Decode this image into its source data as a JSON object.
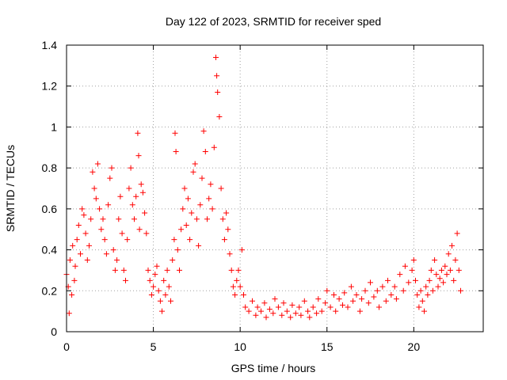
{
  "chart_data": {
    "type": "scatter",
    "title": "Day 122 of 2023, SRMTID for receiver sped",
    "xlabel": "GPS time / hours",
    "ylabel": "SRMTID / TECUs",
    "xlim": [
      0,
      24
    ],
    "ylim": [
      0,
      1.4
    ],
    "x_ticks": [
      0,
      5,
      10,
      15,
      20
    ],
    "y_ticks": [
      0,
      0.2,
      0.4,
      0.6,
      0.8,
      1,
      1.2,
      1.4
    ],
    "x_tick_labels": [
      "0",
      "5",
      "10",
      "15",
      "20"
    ],
    "y_tick_labels": [
      "0",
      "0.2",
      "0.4",
      "0.6",
      "0.8",
      "1",
      "1.2",
      "1.4"
    ],
    "grid": true,
    "marker": "+",
    "series": [
      {
        "name": "SRMTID",
        "color": "#ff0000",
        "points": [
          [
            0.0,
            0.28
          ],
          [
            0.1,
            0.22
          ],
          [
            0.15,
            0.09
          ],
          [
            0.2,
            0.35
          ],
          [
            0.3,
            0.18
          ],
          [
            0.35,
            0.42
          ],
          [
            0.45,
            0.25
          ],
          [
            0.5,
            0.32
          ],
          [
            0.6,
            0.45
          ],
          [
            0.7,
            0.52
          ],
          [
            0.8,
            0.38
          ],
          [
            0.9,
            0.6
          ],
          [
            1.0,
            0.57
          ],
          [
            1.1,
            0.48
          ],
          [
            1.2,
            0.35
          ],
          [
            1.3,
            0.42
          ],
          [
            1.4,
            0.55
          ],
          [
            1.5,
            0.78
          ],
          [
            1.6,
            0.7
          ],
          [
            1.7,
            0.65
          ],
          [
            1.8,
            0.82
          ],
          [
            1.9,
            0.6
          ],
          [
            2.0,
            0.5
          ],
          [
            2.1,
            0.55
          ],
          [
            2.2,
            0.45
          ],
          [
            2.3,
            0.38
          ],
          [
            2.4,
            0.62
          ],
          [
            2.5,
            0.75
          ],
          [
            2.6,
            0.8
          ],
          [
            2.7,
            0.4
          ],
          [
            2.8,
            0.3
          ],
          [
            2.9,
            0.35
          ],
          [
            3.0,
            0.55
          ],
          [
            3.1,
            0.66
          ],
          [
            3.2,
            0.48
          ],
          [
            3.3,
            0.3
          ],
          [
            3.4,
            0.25
          ],
          [
            3.5,
            0.45
          ],
          [
            3.6,
            0.7
          ],
          [
            3.7,
            0.8
          ],
          [
            3.8,
            0.62
          ],
          [
            3.9,
            0.55
          ],
          [
            4.0,
            0.66
          ],
          [
            4.1,
            0.97
          ],
          [
            4.15,
            0.86
          ],
          [
            4.2,
            0.5
          ],
          [
            4.3,
            0.72
          ],
          [
            4.4,
            0.68
          ],
          [
            4.5,
            0.58
          ],
          [
            4.6,
            0.48
          ],
          [
            4.7,
            0.3
          ],
          [
            4.8,
            0.25
          ],
          [
            4.9,
            0.18
          ],
          [
            5.0,
            0.22
          ],
          [
            5.1,
            0.28
          ],
          [
            5.2,
            0.32
          ],
          [
            5.3,
            0.2
          ],
          [
            5.4,
            0.15
          ],
          [
            5.5,
            0.1
          ],
          [
            5.6,
            0.25
          ],
          [
            5.7,
            0.18
          ],
          [
            5.8,
            0.3
          ],
          [
            5.9,
            0.22
          ],
          [
            6.0,
            0.15
          ],
          [
            6.1,
            0.35
          ],
          [
            6.2,
            0.45
          ],
          [
            6.25,
            0.97
          ],
          [
            6.3,
            0.88
          ],
          [
            6.4,
            0.4
          ],
          [
            6.5,
            0.3
          ],
          [
            6.6,
            0.5
          ],
          [
            6.7,
            0.6
          ],
          [
            6.8,
            0.7
          ],
          [
            6.9,
            0.52
          ],
          [
            7.0,
            0.65
          ],
          [
            7.1,
            0.45
          ],
          [
            7.2,
            0.58
          ],
          [
            7.3,
            0.78
          ],
          [
            7.4,
            0.82
          ],
          [
            7.5,
            0.55
          ],
          [
            7.6,
            0.42
          ],
          [
            7.7,
            0.62
          ],
          [
            7.8,
            0.75
          ],
          [
            7.9,
            0.98
          ],
          [
            8.0,
            0.88
          ],
          [
            8.1,
            0.55
          ],
          [
            8.2,
            0.65
          ],
          [
            8.3,
            0.72
          ],
          [
            8.4,
            0.6
          ],
          [
            8.5,
            0.9
          ],
          [
            8.6,
            1.34
          ],
          [
            8.65,
            1.25
          ],
          [
            8.7,
            1.17
          ],
          [
            8.8,
            1.05
          ],
          [
            8.9,
            0.7
          ],
          [
            9.0,
            0.55
          ],
          [
            9.1,
            0.45
          ],
          [
            9.2,
            0.58
          ],
          [
            9.3,
            0.5
          ],
          [
            9.4,
            0.38
          ],
          [
            9.5,
            0.3
          ],
          [
            9.6,
            0.22
          ],
          [
            9.7,
            0.18
          ],
          [
            9.8,
            0.25
          ],
          [
            9.9,
            0.3
          ],
          [
            10.0,
            0.22
          ],
          [
            10.1,
            0.4
          ],
          [
            10.2,
            0.18
          ],
          [
            10.3,
            0.12
          ],
          [
            10.5,
            0.1
          ],
          [
            10.7,
            0.15
          ],
          [
            10.9,
            0.08
          ],
          [
            11.0,
            0.12
          ],
          [
            11.2,
            0.1
          ],
          [
            11.4,
            0.14
          ],
          [
            11.5,
            0.07
          ],
          [
            11.7,
            0.11
          ],
          [
            11.9,
            0.09
          ],
          [
            12.0,
            0.16
          ],
          [
            12.2,
            0.12
          ],
          [
            12.4,
            0.08
          ],
          [
            12.5,
            0.14
          ],
          [
            12.7,
            0.1
          ],
          [
            12.9,
            0.07
          ],
          [
            13.0,
            0.13
          ],
          [
            13.2,
            0.09
          ],
          [
            13.4,
            0.12
          ],
          [
            13.5,
            0.08
          ],
          [
            13.7,
            0.15
          ],
          [
            13.9,
            0.1
          ],
          [
            14.0,
            0.07
          ],
          [
            14.2,
            0.12
          ],
          [
            14.4,
            0.09
          ],
          [
            14.5,
            0.16
          ],
          [
            14.7,
            0.1
          ],
          [
            14.9,
            0.14
          ],
          [
            15.0,
            0.2
          ],
          [
            15.2,
            0.12
          ],
          [
            15.4,
            0.18
          ],
          [
            15.5,
            0.1
          ],
          [
            15.7,
            0.16
          ],
          [
            15.9,
            0.13
          ],
          [
            16.0,
            0.19
          ],
          [
            16.2,
            0.12
          ],
          [
            16.4,
            0.22
          ],
          [
            16.5,
            0.15
          ],
          [
            16.7,
            0.18
          ],
          [
            16.9,
            0.1
          ],
          [
            17.0,
            0.16
          ],
          [
            17.2,
            0.2
          ],
          [
            17.4,
            0.14
          ],
          [
            17.5,
            0.24
          ],
          [
            17.7,
            0.17
          ],
          [
            17.9,
            0.2
          ],
          [
            18.0,
            0.12
          ],
          [
            18.2,
            0.22
          ],
          [
            18.4,
            0.15
          ],
          [
            18.5,
            0.25
          ],
          [
            18.7,
            0.18
          ],
          [
            18.9,
            0.22
          ],
          [
            19.0,
            0.16
          ],
          [
            19.2,
            0.28
          ],
          [
            19.4,
            0.2
          ],
          [
            19.5,
            0.32
          ],
          [
            19.7,
            0.24
          ],
          [
            19.9,
            0.3
          ],
          [
            20.0,
            0.35
          ],
          [
            20.1,
            0.25
          ],
          [
            20.2,
            0.18
          ],
          [
            20.3,
            0.12
          ],
          [
            20.4,
            0.2
          ],
          [
            20.5,
            0.15
          ],
          [
            20.6,
            0.1
          ],
          [
            20.7,
            0.22
          ],
          [
            20.8,
            0.18
          ],
          [
            20.9,
            0.25
          ],
          [
            21.0,
            0.3
          ],
          [
            21.1,
            0.2
          ],
          [
            21.2,
            0.35
          ],
          [
            21.3,
            0.28
          ],
          [
            21.4,
            0.22
          ],
          [
            21.5,
            0.26
          ],
          [
            21.6,
            0.3
          ],
          [
            21.7,
            0.24
          ],
          [
            21.8,
            0.32
          ],
          [
            21.9,
            0.28
          ],
          [
            22.0,
            0.38
          ],
          [
            22.1,
            0.3
          ],
          [
            22.2,
            0.42
          ],
          [
            22.3,
            0.25
          ],
          [
            22.4,
            0.35
          ],
          [
            22.5,
            0.48
          ],
          [
            22.6,
            0.3
          ],
          [
            22.7,
            0.2
          ]
        ]
      }
    ]
  }
}
